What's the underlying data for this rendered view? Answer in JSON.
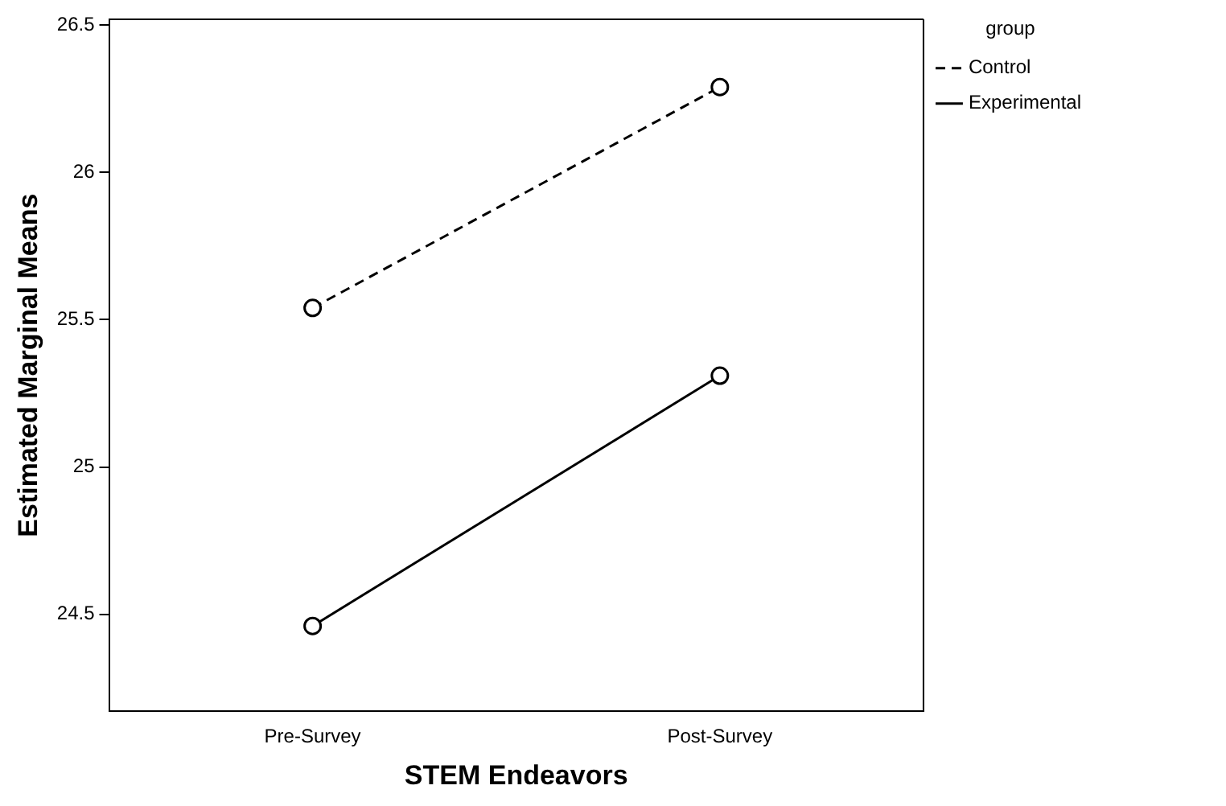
{
  "chart_data": {
    "type": "line",
    "xlabel": "STEM Endeavors",
    "ylabel": "Estimated Marginal Means",
    "legend_title": "group",
    "legend": "top right",
    "grid": false,
    "marker": "circle",
    "categories": [
      "Pre-Survey",
      "Post-Survey"
    ],
    "ylim": [
      24.17,
      26.52
    ],
    "yticks": [
      {
        "value": 24.5,
        "label": "24.5"
      },
      25,
      {
        "value": 25.5,
        "label": "25.5"
      },
      26,
      {
        "value": 26.5,
        "label": "26.5"
      }
    ],
    "series": [
      {
        "name": "Control",
        "color": "#000000",
        "line_style": "dashed",
        "values": [
          25.54,
          26.29
        ]
      },
      {
        "name": "Experimental",
        "color": "#000000",
        "line_style": "solid",
        "values": [
          24.46,
          25.31
        ]
      }
    ]
  }
}
